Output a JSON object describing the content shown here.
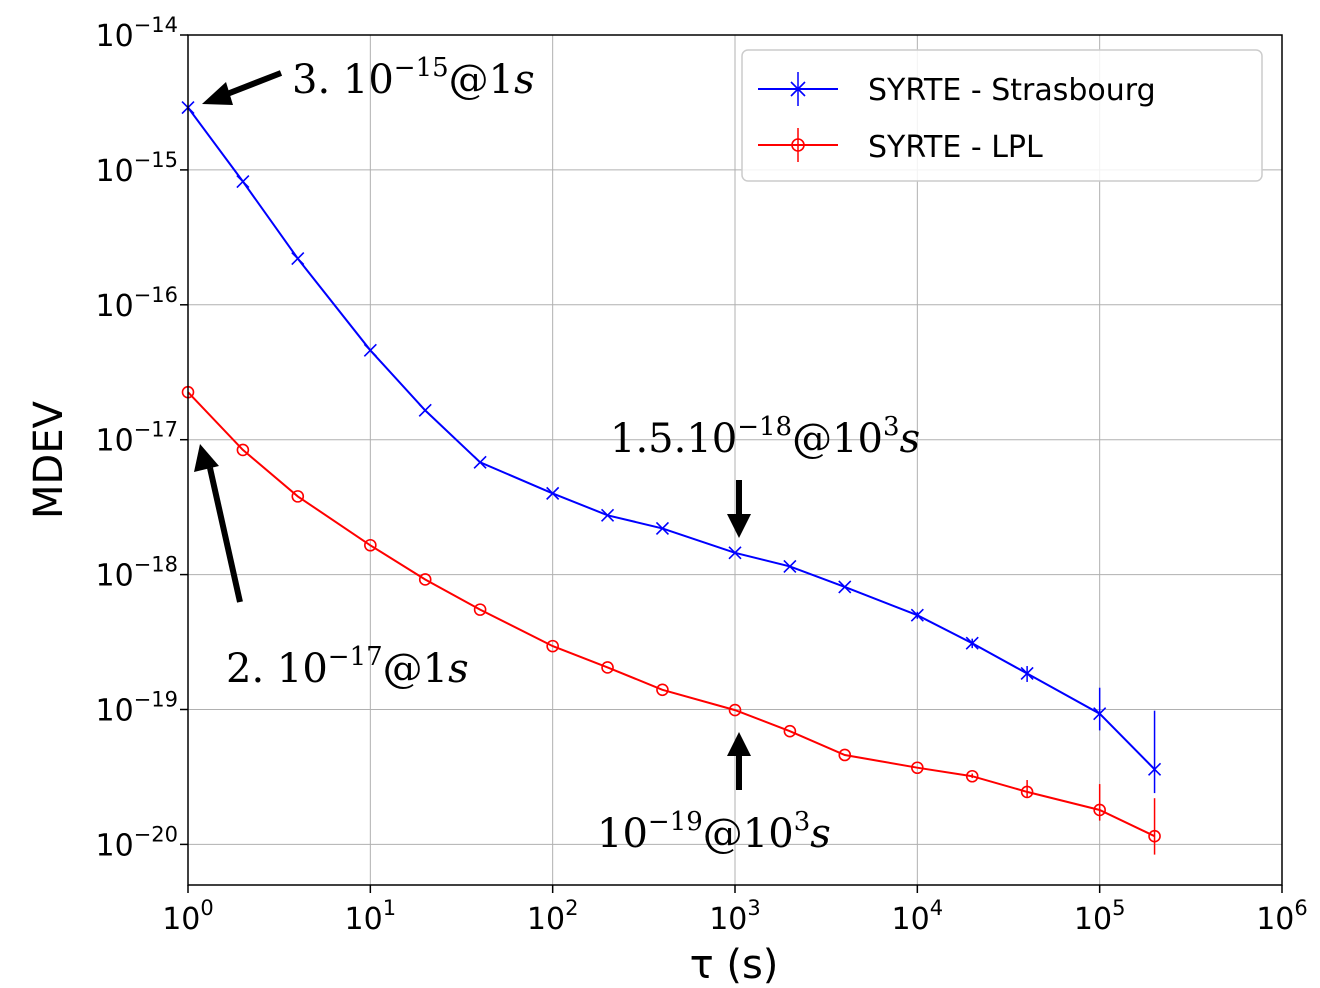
{
  "chart_data": {
    "type": "line",
    "title": "",
    "xlabel": "τ (s)",
    "ylabel": "MDEV",
    "x_scale": "log",
    "y_scale": "log",
    "xlim": [
      1,
      1000000
    ],
    "ylim": [
      5e-21,
      1e-14
    ],
    "grid": true,
    "legend_position": "top-right",
    "x_ticks": [
      {
        "value": 1,
        "base": "10",
        "exp": "0"
      },
      {
        "value": 10,
        "base": "10",
        "exp": "1"
      },
      {
        "value": 100,
        "base": "10",
        "exp": "2"
      },
      {
        "value": 1000,
        "base": "10",
        "exp": "3"
      },
      {
        "value": 10000,
        "base": "10",
        "exp": "4"
      },
      {
        "value": 100000,
        "base": "10",
        "exp": "5"
      },
      {
        "value": 1000000,
        "base": "10",
        "exp": "6"
      }
    ],
    "y_ticks": [
      {
        "value": 1e-14,
        "base": "10",
        "exp": "−14"
      },
      {
        "value": 1e-15,
        "base": "10",
        "exp": "−15"
      },
      {
        "value": 1e-16,
        "base": "10",
        "exp": "−16"
      },
      {
        "value": 1e-17,
        "base": "10",
        "exp": "−17"
      },
      {
        "value": 1e-18,
        "base": "10",
        "exp": "−18"
      },
      {
        "value": 1e-19,
        "base": "10",
        "exp": "−19"
      },
      {
        "value": 1e-20,
        "base": "10",
        "exp": "−20"
      }
    ],
    "series": [
      {
        "name": "SYRTE - Strasbourg",
        "color": "#0000ff",
        "marker": "x",
        "x": [
          1,
          2,
          4,
          10,
          20,
          40,
          100,
          200,
          400,
          1000,
          2000,
          4000,
          10000,
          20000,
          40000,
          100000,
          200000
        ],
        "y": [
          2.9e-15,
          8.2e-16,
          2.2e-16,
          4.6e-17,
          1.65e-17,
          6.8e-18,
          4e-18,
          2.75e-18,
          2.2e-18,
          1.45e-18,
          1.15e-18,
          8.1e-19,
          5e-19,
          3.1e-19,
          1.85e-19,
          9.3e-20,
          3.6e-20
        ],
        "err_low": [
          2.9e-15,
          8.2e-16,
          2.2e-16,
          4.6e-17,
          1.65e-17,
          6.8e-18,
          4e-18,
          2.75e-18,
          2.2e-18,
          1.45e-18,
          1.15e-18,
          8.1e-19,
          4.7e-19,
          2.85e-19,
          1.6e-19,
          7e-20,
          2.4e-20
        ],
        "err_high": [
          2.9e-15,
          8.2e-16,
          2.2e-16,
          4.6e-17,
          1.65e-17,
          6.8e-18,
          4e-18,
          2.75e-18,
          2.2e-18,
          1.45e-18,
          1.15e-18,
          8.1e-19,
          5.3e-19,
          3.35e-19,
          2.1e-19,
          1.45e-19,
          9.8e-20
        ]
      },
      {
        "name": "SYRTE - LPL",
        "color": "#ff0000",
        "marker": "o",
        "x": [
          1,
          2,
          4,
          10,
          20,
          40,
          100,
          200,
          400,
          1000,
          2000,
          4000,
          10000,
          20000,
          40000,
          100000,
          200000
        ],
        "y": [
          2.25e-17,
          8.4e-18,
          3.8e-18,
          1.65e-18,
          9.2e-19,
          5.5e-19,
          2.95e-19,
          2.05e-19,
          1.4e-19,
          9.9e-20,
          6.9e-20,
          4.6e-20,
          3.7e-20,
          3.2e-20,
          2.45e-20,
          1.8e-20,
          1.15e-20
        ],
        "err_low": [
          2.25e-17,
          8.4e-18,
          3.8e-18,
          1.65e-18,
          9.2e-19,
          5.5e-19,
          2.95e-19,
          2.05e-19,
          1.4e-19,
          9.9e-20,
          6.9e-20,
          4.6e-20,
          3.7e-20,
          3.1e-20,
          2.25e-20,
          1.5e-20,
          8.4e-21
        ],
        "err_high": [
          2.25e-17,
          8.4e-18,
          3.8e-18,
          1.65e-18,
          9.2e-19,
          5.5e-19,
          2.95e-19,
          2.05e-19,
          1.4e-19,
          9.9e-20,
          6.9e-20,
          4.6e-20,
          3.7e-20,
          3.35e-20,
          3e-20,
          2.8e-20,
          2.2e-20
        ]
      }
    ],
    "annotations": [
      {
        "id": "strasbourg-1s",
        "pre": "3.",
        "base": " 10",
        "exp": "−15",
        "post": "@1",
        "unit": "s"
      },
      {
        "id": "lpl-1s",
        "pre": "2.",
        "base": " 10",
        "exp": "−17",
        "post": "@1",
        "unit": "s"
      },
      {
        "id": "strasbourg-1000s",
        "pre": "1.5.",
        "base": "10",
        "exp": "−18",
        "post": "@10",
        "post_exp": "3",
        "unit": "s"
      },
      {
        "id": "lpl-1000s",
        "pre": "",
        "base": "10",
        "exp": "−19",
        "post": "@10",
        "post_exp": "3",
        "unit": "s"
      }
    ]
  }
}
